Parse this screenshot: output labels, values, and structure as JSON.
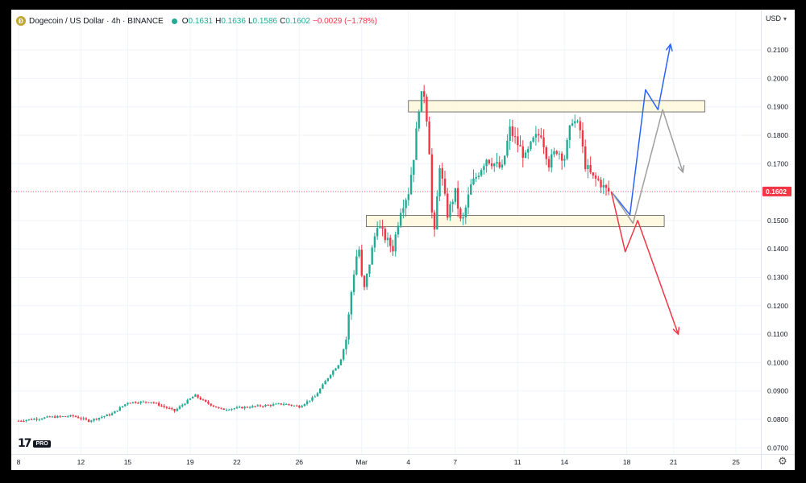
{
  "header": {
    "symbol": "Dogecoin / US Dollar · 4h · BINANCE",
    "coin_icon": "dogecoin-icon",
    "ohlc": [
      {
        "k": "O",
        "v": "0.1631"
      },
      {
        "k": "H",
        "v": "0.1636"
      },
      {
        "k": "L",
        "v": "0.1586"
      },
      {
        "k": "C",
        "v": "0.1602"
      },
      {
        "k": "",
        "v": "−0.0029 (−1.78%)"
      }
    ]
  },
  "currency": "USD",
  "logo": {
    "mark": "17",
    "badge": "PRO"
  },
  "colors": {
    "up": "#22ab94",
    "down": "#f23645",
    "zone_fill": "#fff8dc",
    "zone_stroke": "#555555",
    "price_line": "#f23645",
    "blue": "#2962ff",
    "red": "#f23645",
    "gray": "#9e9e9e"
  },
  "chart_data": {
    "type": "candlestick",
    "symbol": "DOGEUSD",
    "timeframe": "4h",
    "ylim": [
      0.065,
      0.2255
    ],
    "yticks": [
      "0.0700",
      "0.0800",
      "0.0900",
      "0.1000",
      "0.1100",
      "0.1200",
      "0.1300",
      "0.1400",
      "0.1500",
      "0.1600",
      "0.1700",
      "0.1800",
      "0.1900",
      "0.2000",
      "0.2100"
    ],
    "xlim_days": [
      0,
      49.5
    ],
    "xticks": [
      {
        "day": 0,
        "label": "8"
      },
      {
        "day": 4,
        "label": "12"
      },
      {
        "day": 7,
        "label": "15"
      },
      {
        "day": 11,
        "label": "19"
      },
      {
        "day": 14,
        "label": "22"
      },
      {
        "day": 18,
        "label": "26"
      },
      {
        "day": 22,
        "label": "Mar"
      },
      {
        "day": 25,
        "label": "4"
      },
      {
        "day": 28,
        "label": "7"
      },
      {
        "day": 32,
        "label": "11"
      },
      {
        "day": 35,
        "label": "14"
      },
      {
        "day": 39,
        "label": "18"
      },
      {
        "day": 42,
        "label": "21"
      },
      {
        "day": 46,
        "label": "25"
      }
    ],
    "last_price": "0.1602",
    "price_path": [
      [
        0,
        0.0795
      ],
      [
        2,
        0.0808
      ],
      [
        3.5,
        0.0812
      ],
      [
        4.5,
        0.0795
      ],
      [
        6,
        0.082
      ],
      [
        7,
        0.086
      ],
      [
        8.5,
        0.0862
      ],
      [
        10,
        0.083
      ],
      [
        11.3,
        0.0885
      ],
      [
        12,
        0.086
      ],
      [
        13,
        0.0835
      ],
      [
        15,
        0.0845
      ],
      [
        17,
        0.0855
      ],
      [
        18,
        0.0845
      ],
      [
        19,
        0.088
      ],
      [
        20,
        0.096
      ],
      [
        20.6,
        0.1
      ],
      [
        21,
        0.108
      ],
      [
        21.4,
        0.128
      ],
      [
        21.8,
        0.142
      ],
      [
        22.1,
        0.124
      ],
      [
        22.5,
        0.135
      ],
      [
        23,
        0.149
      ],
      [
        23.5,
        0.144
      ],
      [
        24,
        0.14
      ],
      [
        24.5,
        0.154
      ],
      [
        25,
        0.16
      ],
      [
        25.4,
        0.175
      ],
      [
        25.7,
        0.192
      ],
      [
        26,
        0.195
      ],
      [
        26.3,
        0.18
      ],
      [
        26.6,
        0.14
      ],
      [
        27,
        0.17
      ],
      [
        27.5,
        0.152
      ],
      [
        28,
        0.16
      ],
      [
        28.4,
        0.148
      ],
      [
        29,
        0.162
      ],
      [
        30,
        0.172
      ],
      [
        31,
        0.168
      ],
      [
        31.5,
        0.182
      ],
      [
        32,
        0.177
      ],
      [
        32.5,
        0.172
      ],
      [
        33,
        0.178
      ],
      [
        33.5,
        0.181
      ],
      [
        34,
        0.17
      ],
      [
        34.5,
        0.175
      ],
      [
        35,
        0.172
      ],
      [
        35.5,
        0.186
      ],
      [
        36,
        0.182
      ],
      [
        36.3,
        0.17
      ],
      [
        36.8,
        0.165
      ],
      [
        37.2,
        0.164
      ],
      [
        37.6,
        0.161
      ],
      [
        37.9,
        0.1602
      ]
    ],
    "candle_spacing_days": 0.1667,
    "zones": [
      {
        "x0": 25,
        "x1": 44,
        "y0": 0.1882,
        "y1": 0.1922
      },
      {
        "x0": 22.3,
        "x1": 41.4,
        "y0": 0.1478,
        "y1": 0.1518
      }
    ],
    "scenarios": [
      {
        "name": "blue",
        "points": [
          [
            38,
            0.1602
          ],
          [
            39.2,
            0.152
          ],
          [
            40.2,
            0.196
          ],
          [
            41,
            0.189
          ],
          [
            41.8,
            0.212
          ]
        ]
      },
      {
        "name": "gray",
        "points": [
          [
            38,
            0.1602
          ],
          [
            39.4,
            0.149
          ],
          [
            41.3,
            0.189
          ],
          [
            42.6,
            0.167
          ]
        ]
      },
      {
        "name": "red",
        "points": [
          [
            38,
            0.1602
          ],
          [
            38.9,
            0.139
          ],
          [
            39.7,
            0.15
          ],
          [
            42.3,
            0.11
          ]
        ]
      }
    ]
  }
}
